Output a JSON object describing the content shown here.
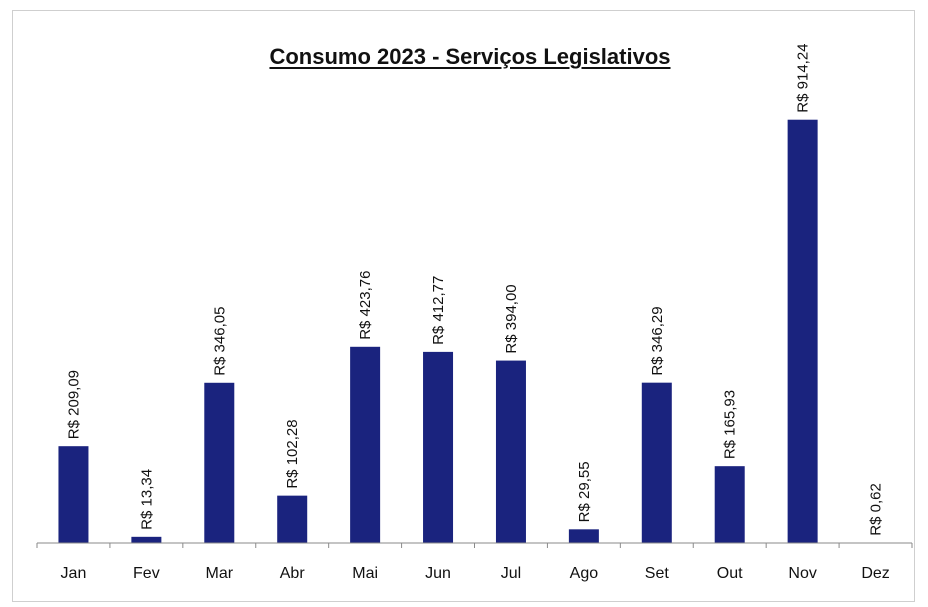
{
  "chart_data": {
    "type": "bar",
    "title": "Consumo 2023 - Serviços Legislativos",
    "categories": [
      "Jan",
      "Fev",
      "Mar",
      "Abr",
      "Mai",
      "Jun",
      "Jul",
      "Ago",
      "Set",
      "Out",
      "Nov",
      "Dez"
    ],
    "values": [
      209.09,
      13.34,
      346.05,
      102.28,
      423.76,
      412.77,
      394.0,
      29.55,
      346.29,
      165.93,
      914.24,
      0.62
    ],
    "data_labels": [
      "R$ 209,09",
      "R$ 13,34",
      "R$ 346,05",
      "R$ 102,28",
      "R$ 423,76",
      "R$ 412,77",
      "R$ 394,00",
      "R$ 29,55",
      "R$ 346,29",
      "R$ 165,93",
      "R$ 914,24",
      "R$ 0,62"
    ],
    "xlabel": "",
    "ylabel": "",
    "ylim": [
      0,
      1000
    ],
    "grid": false,
    "legend": "none",
    "bar_color": "#1a237e"
  }
}
